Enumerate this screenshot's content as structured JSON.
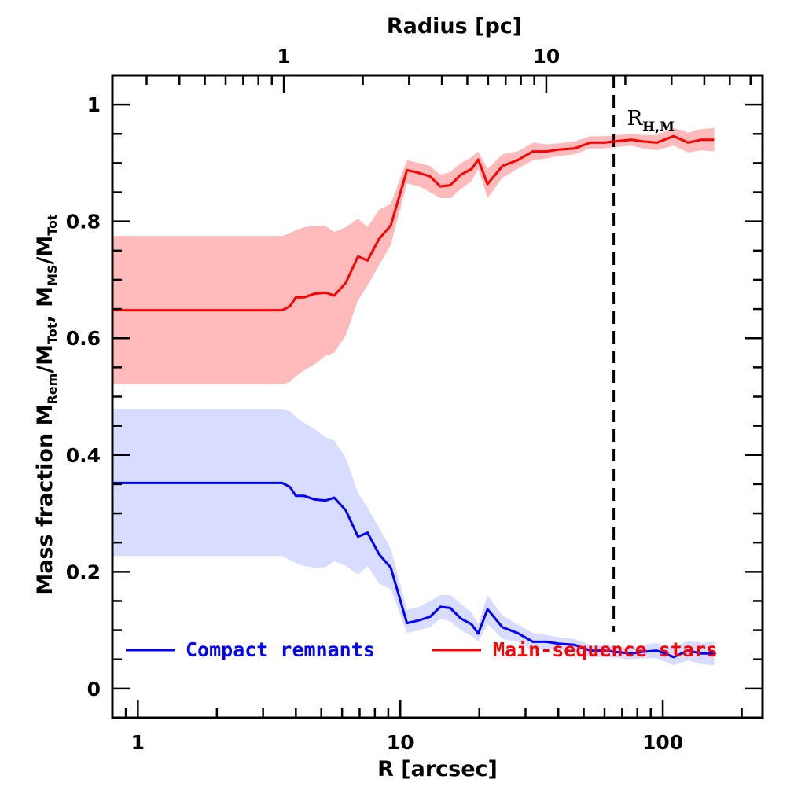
{
  "chart_data": {
    "type": "line",
    "xscale": "log",
    "xlim": [
      0.8,
      240
    ],
    "ylim": [
      -0.05,
      1.05
    ],
    "xlabel": "R [arcsec]",
    "top_axis_label": "Radius [pc]",
    "top_ticks": [
      {
        "label": "1",
        "arcsec": 3.6
      },
      {
        "label": "10",
        "arcsec": 36
      }
    ],
    "ylabel": {
      "prefix": "Mass fraction  M",
      "sub1": "Rem",
      "mid1": "/M",
      "sub2": "Tot",
      "mid2": ",  M",
      "sub3": "MS",
      "mid3": "/M",
      "sub4": "Tot"
    },
    "x_tick_labels": [
      {
        "label": "1",
        "value": 1
      },
      {
        "label": "10",
        "value": 10
      },
      {
        "label": "100",
        "value": 100
      }
    ],
    "y_tick_labels": [
      {
        "label": "0",
        "value": 0
      },
      {
        "label": "0.2",
        "value": 0.2
      },
      {
        "label": "0.4",
        "value": 0.4
      },
      {
        "label": "0.6",
        "value": 0.6
      },
      {
        "label": "0.8",
        "value": 0.8
      },
      {
        "label": "1",
        "value": 1.0
      }
    ],
    "vline": {
      "x": 65,
      "ymax": 1.0,
      "label_main": "R",
      "label_sub": "H,M"
    },
    "series": [
      {
        "name": "Main-sequence stars",
        "color": "#ff0000",
        "band_color": "#ffbbbb",
        "x": [
          0.8,
          3.55,
          3.8,
          4.0,
          4.3,
          4.7,
          5.2,
          5.6,
          6.2,
          6.9,
          7.5,
          8.3,
          9.2,
          10.6,
          11.8,
          13.0,
          14.2,
          15.5,
          17.0,
          18.7,
          19.8,
          21.5,
          24.5,
          28.0,
          32.0,
          36.0,
          40.0,
          46.0,
          53.0,
          60.0,
          68.0,
          76.0,
          84.0,
          95.0,
          110.0,
          125.0,
          140.0,
          157.0
        ],
        "y": [
          0.648,
          0.648,
          0.655,
          0.67,
          0.67,
          0.676,
          0.678,
          0.673,
          0.695,
          0.74,
          0.733,
          0.77,
          0.793,
          0.888,
          0.883,
          0.877,
          0.86,
          0.862,
          0.88,
          0.89,
          0.906,
          0.864,
          0.895,
          0.905,
          0.92,
          0.92,
          0.923,
          0.925,
          0.935,
          0.935,
          0.938,
          0.94,
          0.937,
          0.935,
          0.946,
          0.935,
          0.94,
          0.94
        ],
        "lower": [
          0.521,
          0.521,
          0.525,
          0.535,
          0.545,
          0.555,
          0.57,
          0.575,
          0.605,
          0.665,
          0.69,
          0.725,
          0.76,
          0.865,
          0.86,
          0.85,
          0.84,
          0.84,
          0.855,
          0.87,
          0.89,
          0.84,
          0.875,
          0.89,
          0.905,
          0.908,
          0.912,
          0.915,
          0.925,
          0.925,
          0.928,
          0.93,
          0.925,
          0.922,
          0.93,
          0.918,
          0.922,
          0.92
        ],
        "upper": [
          0.775,
          0.775,
          0.78,
          0.785,
          0.79,
          0.793,
          0.792,
          0.782,
          0.79,
          0.805,
          0.79,
          0.82,
          0.83,
          0.905,
          0.9,
          0.895,
          0.88,
          0.885,
          0.9,
          0.91,
          0.92,
          0.89,
          0.915,
          0.92,
          0.935,
          0.932,
          0.934,
          0.937,
          0.946,
          0.946,
          0.948,
          0.95,
          0.948,
          0.948,
          0.96,
          0.952,
          0.958,
          0.96
        ]
      },
      {
        "name": "Compact remnants",
        "color": "#0000ff",
        "band_color": "#d8dcff",
        "x": [
          0.8,
          3.55,
          3.8,
          4.0,
          4.3,
          4.7,
          5.2,
          5.6,
          6.2,
          6.9,
          7.5,
          8.3,
          9.2,
          10.6,
          11.8,
          13.0,
          14.2,
          15.5,
          17.0,
          18.7,
          19.8,
          21.5,
          24.5,
          28.0,
          32.0,
          36.0,
          40.0,
          46.0,
          53.0,
          60.0,
          68.0,
          76.0,
          84.0,
          95.0,
          110.0,
          125.0,
          140.0,
          157.0
        ],
        "y": [
          0.352,
          0.352,
          0.345,
          0.33,
          0.33,
          0.324,
          0.322,
          0.327,
          0.305,
          0.26,
          0.267,
          0.23,
          0.207,
          0.112,
          0.117,
          0.123,
          0.14,
          0.138,
          0.12,
          0.11,
          0.094,
          0.136,
          0.105,
          0.095,
          0.08,
          0.08,
          0.077,
          0.075,
          0.065,
          0.065,
          0.062,
          0.06,
          0.063,
          0.065,
          0.054,
          0.065,
          0.06,
          0.06
        ],
        "lower": [
          0.227,
          0.227,
          0.22,
          0.215,
          0.21,
          0.207,
          0.208,
          0.218,
          0.21,
          0.195,
          0.21,
          0.18,
          0.17,
          0.095,
          0.1,
          0.105,
          0.12,
          0.115,
          0.1,
          0.09,
          0.08,
          0.11,
          0.085,
          0.08,
          0.065,
          0.068,
          0.066,
          0.063,
          0.054,
          0.054,
          0.052,
          0.05,
          0.052,
          0.052,
          0.04,
          0.048,
          0.042,
          0.04
        ],
        "upper": [
          0.479,
          0.479,
          0.475,
          0.465,
          0.455,
          0.445,
          0.43,
          0.425,
          0.395,
          0.335,
          0.31,
          0.275,
          0.24,
          0.135,
          0.14,
          0.15,
          0.16,
          0.16,
          0.145,
          0.13,
          0.11,
          0.16,
          0.125,
          0.11,
          0.095,
          0.092,
          0.088,
          0.085,
          0.075,
          0.075,
          0.072,
          0.07,
          0.075,
          0.078,
          0.07,
          0.082,
          0.078,
          0.08
        ]
      }
    ],
    "legend": [
      {
        "label": "Compact remnants",
        "color": "#0000ff"
      },
      {
        "label": "Main-sequence stars",
        "color": "#ff0000"
      }
    ]
  }
}
